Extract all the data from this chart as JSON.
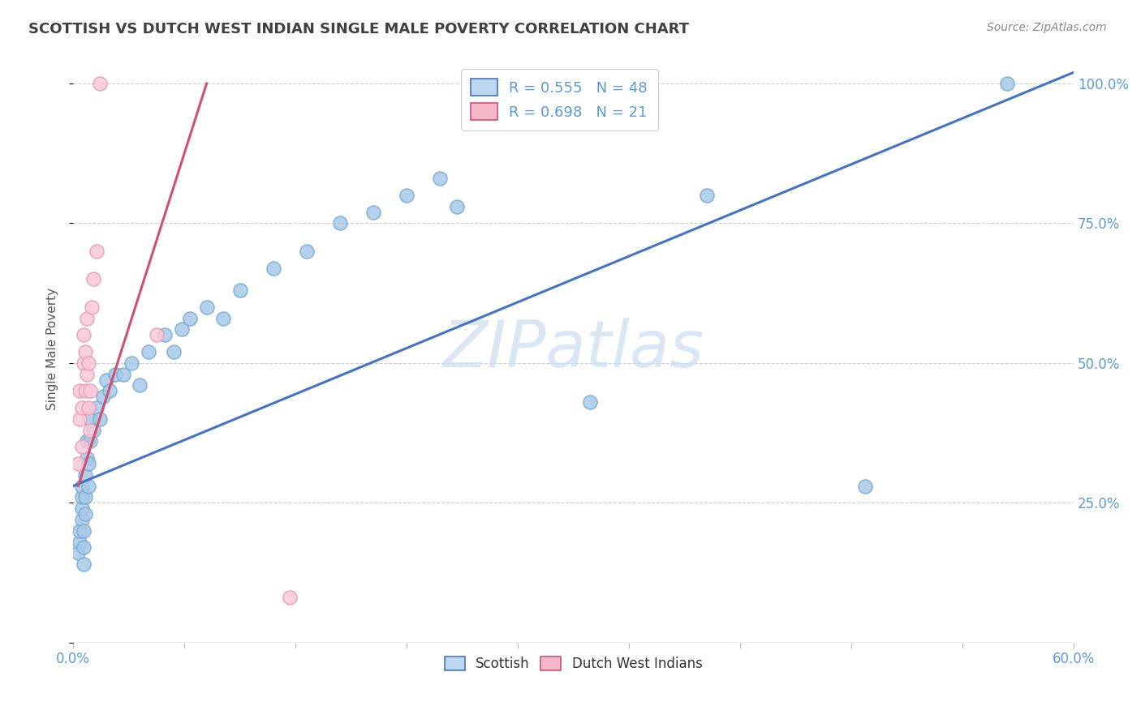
{
  "title": "SCOTTISH VS DUTCH WEST INDIAN SINGLE MALE POVERTY CORRELATION CHART",
  "source": "Source: ZipAtlas.com",
  "ylabel": "Single Male Poverty",
  "watermark": "ZIPatlas",
  "xlim": [
    0.0,
    0.6
  ],
  "ylim": [
    0.0,
    1.05
  ],
  "blue_R": 0.555,
  "blue_N": 48,
  "pink_R": 0.698,
  "pink_N": 21,
  "blue_color": "#a8c8e8",
  "blue_edge": "#7bafd4",
  "pink_color": "#f9c8d8",
  "pink_edge": "#e8a0b8",
  "blue_line_color": "#4472c4",
  "pink_line_color": "#d05070",
  "title_color": "#404040",
  "axis_tick_color": "#5b9bd5",
  "legend_blue_fill": "#bdd7ee",
  "legend_pink_fill": "#f4b8c8",
  "legend_border": "#cccccc",
  "scottish_x": [
    0.003,
    0.004,
    0.004,
    0.005,
    0.005,
    0.005,
    0.005,
    0.006,
    0.006,
    0.006,
    0.007,
    0.007,
    0.007,
    0.008,
    0.008,
    0.009,
    0.009,
    0.01,
    0.01,
    0.012,
    0.014,
    0.016,
    0.018,
    0.02,
    0.022,
    0.025,
    0.03,
    0.035,
    0.04,
    0.045,
    0.055,
    0.06,
    0.065,
    0.07,
    0.08,
    0.09,
    0.1,
    0.12,
    0.14,
    0.16,
    0.18,
    0.2,
    0.22,
    0.23,
    0.31,
    0.38,
    0.475,
    0.56
  ],
  "scottish_y": [
    0.16,
    0.18,
    0.2,
    0.22,
    0.24,
    0.26,
    0.28,
    0.14,
    0.17,
    0.2,
    0.23,
    0.26,
    0.3,
    0.33,
    0.36,
    0.28,
    0.32,
    0.36,
    0.4,
    0.38,
    0.42,
    0.4,
    0.44,
    0.47,
    0.45,
    0.48,
    0.48,
    0.5,
    0.46,
    0.52,
    0.55,
    0.52,
    0.56,
    0.58,
    0.6,
    0.58,
    0.63,
    0.67,
    0.7,
    0.75,
    0.77,
    0.8,
    0.83,
    0.78,
    0.43,
    0.8,
    0.28,
    1.0
  ],
  "dutch_x": [
    0.003,
    0.004,
    0.004,
    0.005,
    0.005,
    0.006,
    0.006,
    0.007,
    0.007,
    0.008,
    0.008,
    0.009,
    0.009,
    0.01,
    0.01,
    0.011,
    0.012,
    0.014,
    0.016,
    0.05,
    0.13
  ],
  "dutch_y": [
    0.32,
    0.4,
    0.45,
    0.35,
    0.42,
    0.5,
    0.55,
    0.45,
    0.52,
    0.48,
    0.58,
    0.42,
    0.5,
    0.38,
    0.45,
    0.6,
    0.65,
    0.7,
    1.0,
    0.55,
    0.08
  ],
  "blue_line_x": [
    0.0,
    0.6
  ],
  "blue_line_y": [
    0.28,
    1.02
  ],
  "pink_line_x": [
    0.003,
    0.08
  ],
  "pink_line_y": [
    0.28,
    1.0
  ]
}
